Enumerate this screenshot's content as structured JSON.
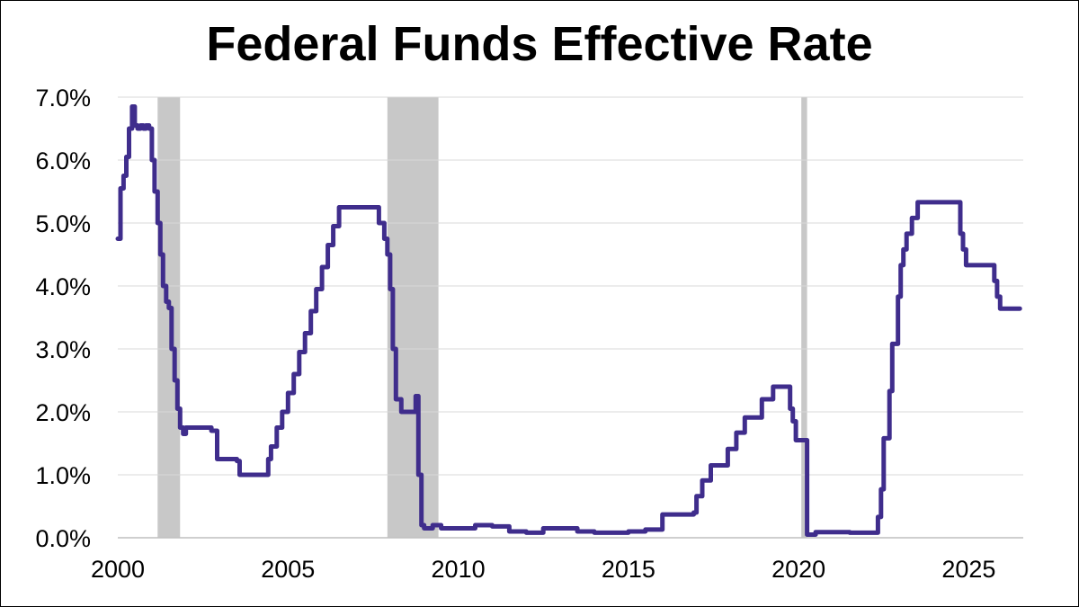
{
  "chart_data": {
    "type": "line",
    "title": "Federal Funds Effective Rate",
    "xlabel": "",
    "ylabel": "",
    "xlim": [
      2000,
      2026.6
    ],
    "ylim": [
      0,
      7
    ],
    "x_ticks": [
      "2000",
      "2005",
      "2010",
      "2015",
      "2020",
      "2025"
    ],
    "y_ticks": [
      "0.0%",
      "1.0%",
      "2.0%",
      "3.0%",
      "4.0%",
      "5.0%",
      "6.0%",
      "7.0%"
    ],
    "grid": true,
    "legend": "none",
    "recessions": [
      {
        "start": 2001.17,
        "end": 2001.83
      },
      {
        "start": 2007.92,
        "end": 2009.42
      },
      {
        "start": 2020.08,
        "end": 2020.25
      }
    ],
    "series": [
      {
        "color": "#3f2d8c",
        "x": [
          2000.0,
          2000.08,
          2000.17,
          2000.25,
          2000.33,
          2000.42,
          2000.5,
          2000.58,
          2000.67,
          2000.75,
          2000.83,
          2000.92,
          2001.0,
          2001.08,
          2001.17,
          2001.25,
          2001.33,
          2001.42,
          2001.5,
          2001.58,
          2001.67,
          2001.75,
          2001.83,
          2001.92,
          2002.0,
          2002.25,
          2002.5,
          2002.75,
          2002.92,
          2003.0,
          2003.25,
          2003.5,
          2003.58,
          2003.75,
          2004.0,
          2004.25,
          2004.42,
          2004.5,
          2004.67,
          2004.83,
          2005.0,
          2005.17,
          2005.33,
          2005.5,
          2005.67,
          2005.83,
          2006.0,
          2006.17,
          2006.33,
          2006.5,
          2006.75,
          2007.0,
          2007.25,
          2007.5,
          2007.67,
          2007.83,
          2007.92,
          2008.0,
          2008.08,
          2008.17,
          2008.33,
          2008.5,
          2008.67,
          2008.75,
          2008.83,
          2008.92,
          2009.0,
          2009.25,
          2009.5,
          2010.0,
          2010.5,
          2011.0,
          2011.5,
          2012.0,
          2012.5,
          2013.0,
          2013.5,
          2014.0,
          2014.5,
          2015.0,
          2015.5,
          2015.92,
          2016.0,
          2016.5,
          2016.92,
          2017.0,
          2017.17,
          2017.42,
          2017.75,
          2017.92,
          2018.17,
          2018.42,
          2018.67,
          2018.92,
          2019.25,
          2019.5,
          2019.58,
          2019.75,
          2019.83,
          2019.92,
          2020.0,
          2020.17,
          2020.25,
          2020.5,
          2021.0,
          2021.5,
          2022.0,
          2022.17,
          2022.33,
          2022.42,
          2022.5,
          2022.67,
          2022.75,
          2022.92,
          2023.0,
          2023.08,
          2023.17,
          2023.33,
          2023.5,
          2023.67,
          2024.0,
          2024.5,
          2024.67,
          2024.75,
          2024.83,
          2024.92,
          2025.0,
          2025.25,
          2025.5,
          2025.67,
          2025.75,
          2025.83,
          2025.92,
          2026.0,
          2026.25,
          2026.5
        ],
        "y": [
          4.75,
          5.55,
          5.75,
          6.05,
          6.5,
          6.85,
          6.55,
          6.5,
          6.55,
          6.5,
          6.55,
          6.5,
          6.0,
          5.5,
          5.0,
          4.5,
          4.0,
          3.75,
          3.65,
          3.0,
          2.5,
          2.05,
          1.75,
          1.65,
          1.75,
          1.75,
          1.75,
          1.7,
          1.25,
          1.25,
          1.25,
          1.22,
          1.0,
          1.0,
          1.0,
          1.0,
          1.25,
          1.45,
          1.75,
          2.0,
          2.3,
          2.6,
          2.95,
          3.25,
          3.6,
          3.95,
          4.3,
          4.65,
          4.95,
          5.25,
          5.25,
          5.25,
          5.25,
          5.25,
          5.0,
          4.75,
          4.5,
          3.95,
          3.0,
          2.2,
          2.0,
          2.0,
          2.0,
          2.25,
          1.0,
          0.2,
          0.15,
          0.2,
          0.15,
          0.15,
          0.2,
          0.18,
          0.1,
          0.08,
          0.15,
          0.15,
          0.1,
          0.08,
          0.08,
          0.1,
          0.13,
          0.13,
          0.37,
          0.37,
          0.4,
          0.66,
          0.91,
          1.15,
          1.15,
          1.41,
          1.67,
          1.91,
          1.91,
          2.2,
          2.4,
          2.4,
          2.4,
          2.05,
          1.85,
          1.55,
          1.55,
          1.55,
          0.05,
          0.09,
          0.09,
          0.08,
          0.08,
          0.08,
          0.33,
          0.77,
          1.58,
          2.33,
          3.08,
          3.83,
          4.33,
          4.58,
          4.83,
          5.08,
          5.33,
          5.33,
          5.33,
          5.33,
          5.33,
          4.83,
          4.58,
          4.33,
          4.33,
          4.33,
          4.33,
          4.33,
          4.08,
          3.83,
          3.64,
          3.64,
          3.64,
          3.64
        ]
      }
    ]
  }
}
